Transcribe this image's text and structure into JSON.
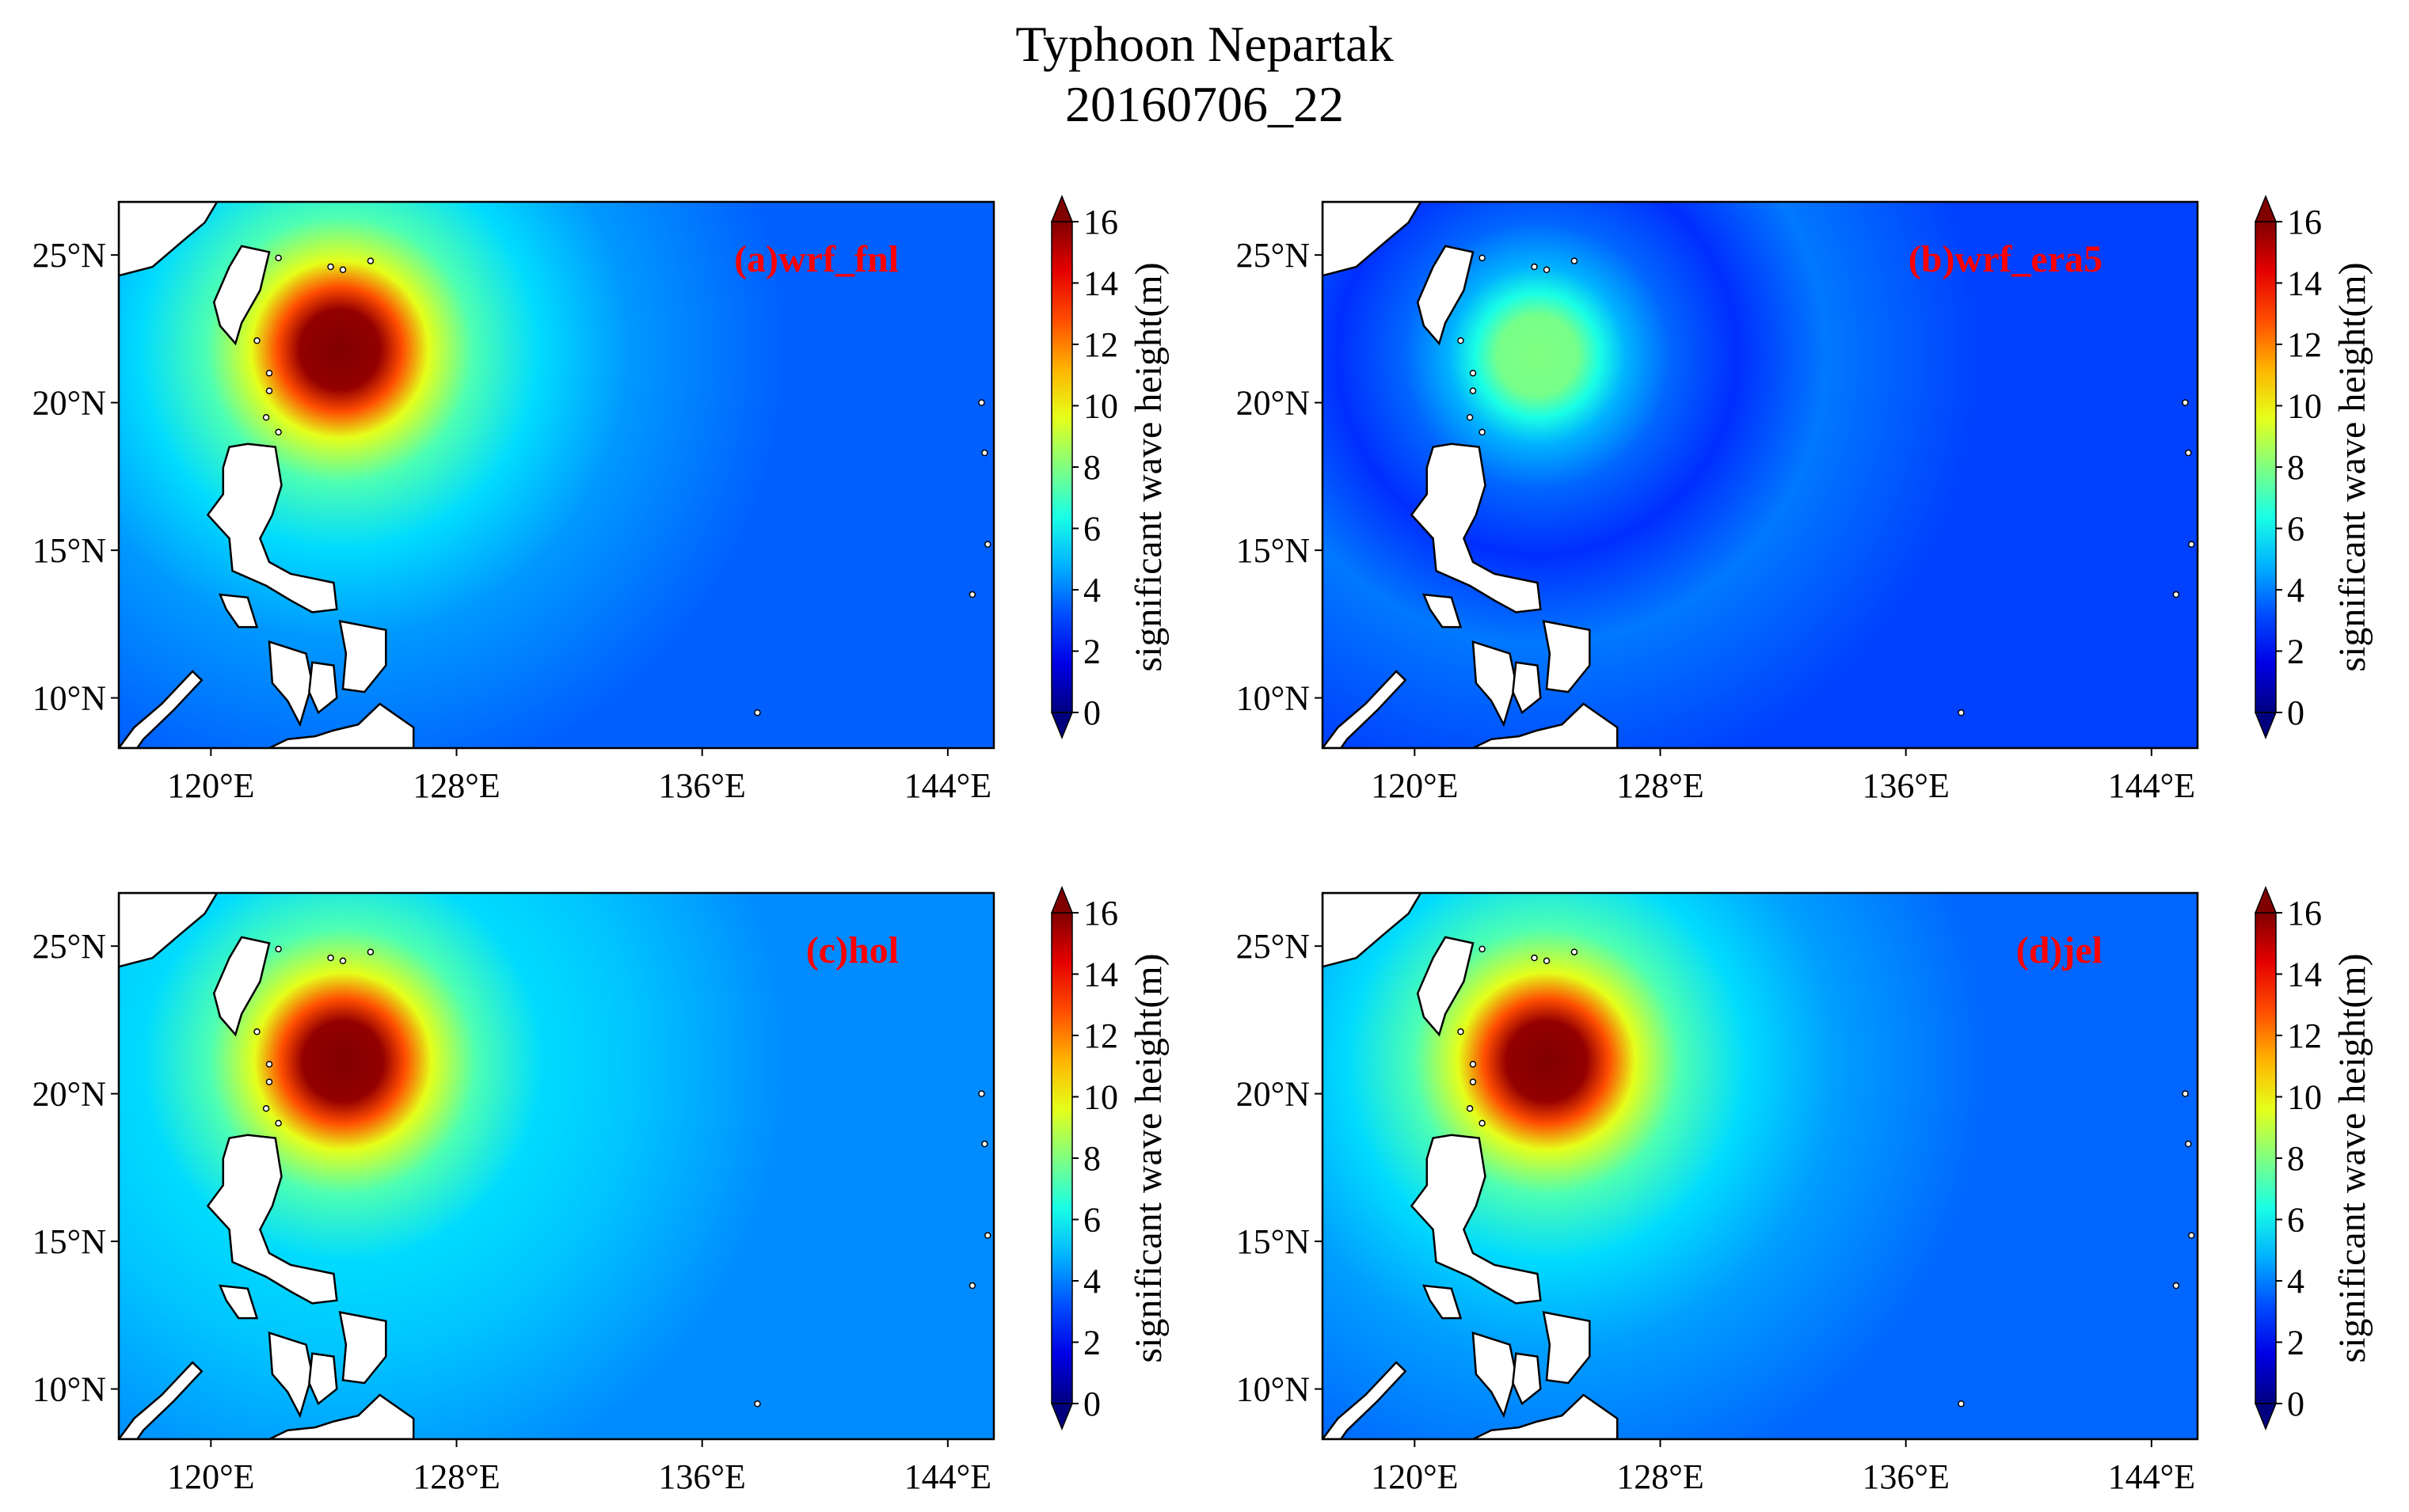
{
  "figure": {
    "title_line1": "Typhoon Nepartak",
    "title_line2": "20160706_22"
  },
  "axes": {
    "x_ticks": [
      "120°E",
      "128°E",
      "136°E",
      "144°E"
    ],
    "x_tick_values": [
      120,
      128,
      136,
      144
    ],
    "y_ticks": [
      "25°N",
      "20°N",
      "15°N",
      "10°N"
    ],
    "y_tick_values": [
      25,
      20,
      15,
      10
    ],
    "lon_range": [
      117,
      145.5
    ],
    "lat_range": [
      8.3,
      26.8
    ]
  },
  "colorbar": {
    "label": "significant wave height(m)",
    "ticks": [
      "0",
      "2",
      "4",
      "6",
      "8",
      "10",
      "12",
      "14",
      "16"
    ],
    "tick_values": [
      0,
      2,
      4,
      6,
      8,
      10,
      12,
      14,
      16
    ],
    "range": [
      0,
      16
    ],
    "colormap": "jet",
    "extend": "both"
  },
  "chart_data": [
    {
      "type": "heatmap",
      "panel_label": "(a)wrf_fnl",
      "max_value": 16,
      "eye_lon": 124.2,
      "eye_lat": 21.8,
      "background_value": 3.5,
      "variable": "significant wave height"
    },
    {
      "type": "heatmap",
      "panel_label": "(b)wrf_era5",
      "max_value": 8,
      "eye_lon": 124.0,
      "eye_lat": 21.6,
      "background_value": 3.0,
      "variable": "significant wave height"
    },
    {
      "type": "heatmap",
      "panel_label": "(c)hol",
      "max_value": 16,
      "eye_lon": 124.3,
      "eye_lat": 21.1,
      "background_value": 4.2,
      "variable": "significant wave height"
    },
    {
      "type": "heatmap",
      "panel_label": "(d)jel",
      "max_value": 16,
      "eye_lon": 124.3,
      "eye_lat": 21.1,
      "background_value": 3.6,
      "variable": "significant wave height"
    }
  ],
  "colors": {
    "land": "#ffffff",
    "coastline": "#000000",
    "panel_label": "#ff0000"
  }
}
